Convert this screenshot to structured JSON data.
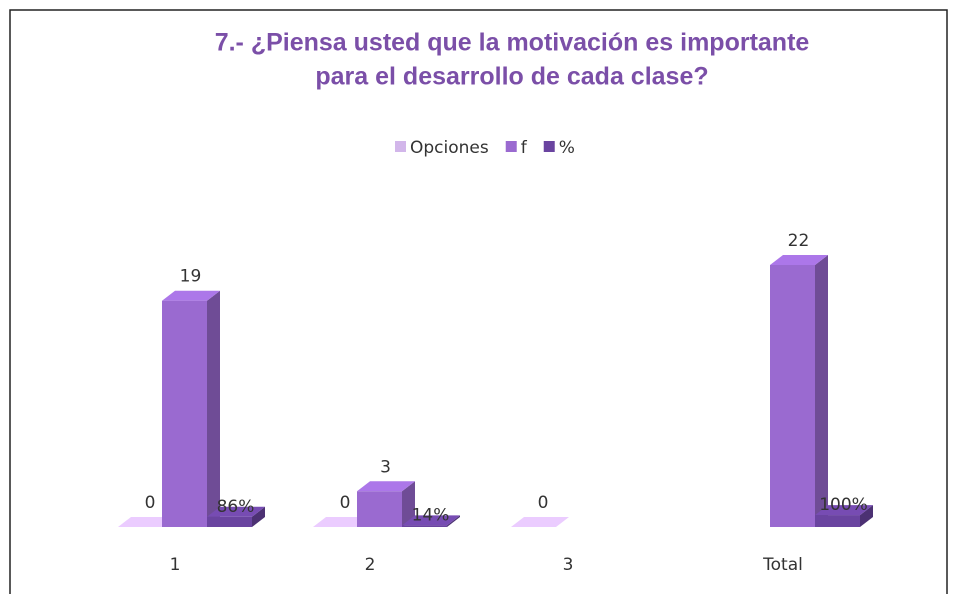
{
  "chart_data": {
    "type": "bar3d",
    "title": [
      "7.- ¿Piensa usted que la motivación es importante",
      "para el desarrollo de cada clase?"
    ],
    "categories": [
      "1",
      "2",
      "3",
      "Total"
    ],
    "series": [
      {
        "name": "Opciones",
        "color": "#d2b6ea",
        "values": [
          0,
          0,
          0,
          null
        ]
      },
      {
        "name": "f",
        "color": "#9a6ad0",
        "values": [
          19,
          3,
          null,
          22
        ]
      },
      {
        "name": "%",
        "color": "#6a44a0",
        "values": [
          0.86,
          0.14,
          null,
          1
        ],
        "value_labels": [
          "86%",
          "14%",
          null,
          "100%"
        ]
      }
    ],
    "legend": "top"
  }
}
